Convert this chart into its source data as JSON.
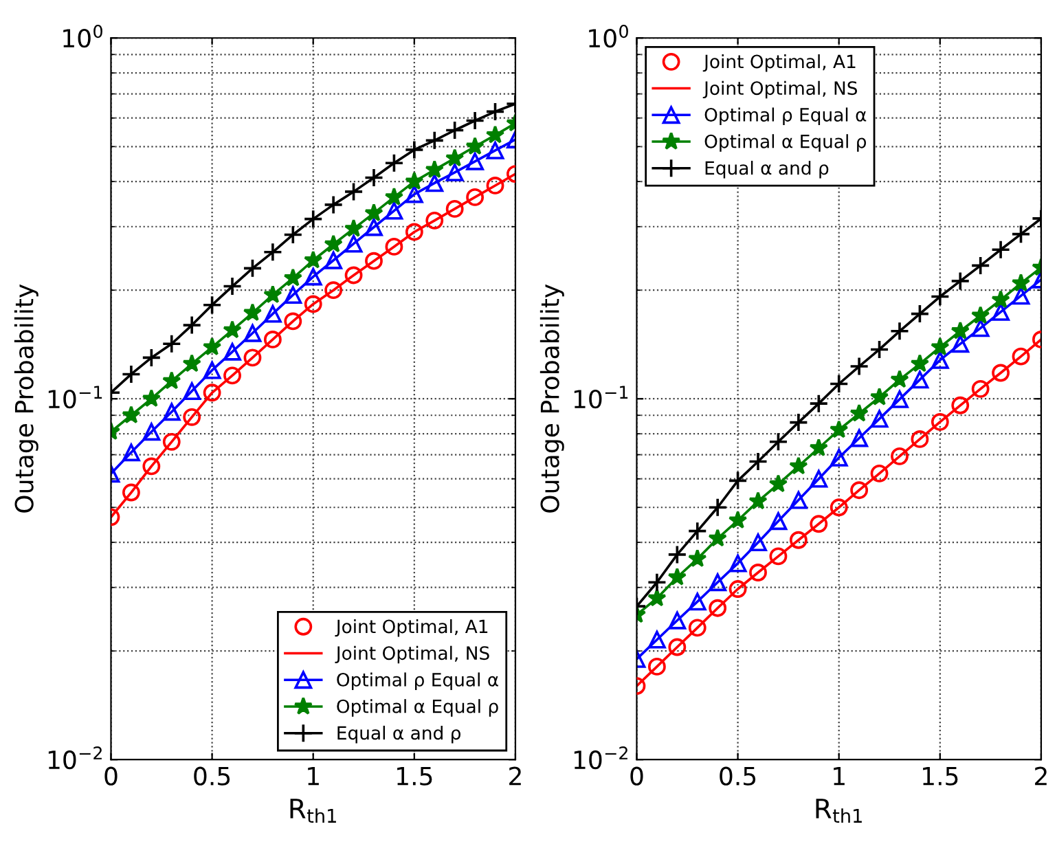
{
  "chart_data": [
    {
      "type": "line",
      "xlabel": "R$_{th1}$",
      "ylabel": "Outage Probability",
      "log": "y",
      "grid": true,
      "legend": "bottom right",
      "x": [
        0,
        0.1,
        0.2,
        0.3,
        0.4,
        0.5,
        0.6,
        0.7,
        0.8,
        0.9,
        1.0,
        1.1,
        1.2,
        1.3,
        1.4,
        1.5,
        1.6,
        1.7,
        1.8,
        1.9,
        2.0
      ],
      "xlim": [
        0,
        2
      ],
      "xticks": [
        0,
        0.5,
        1,
        1.5,
        2
      ],
      "ylim": [
        0.01,
        1
      ],
      "yticks": [
        {
          "value": 0.01,
          "label": "10$^{−2}$"
        },
        {
          "value": 0.1,
          "label": "10$^{−1}$"
        },
        {
          "value": 1,
          "label": "10$^{0}$"
        }
      ],
      "series": [
        {
          "name": "Joint Optimal, A1",
          "type": "scatter",
          "marker": "circle",
          "color": "#ff0000",
          "values": [
            0.047,
            0.055,
            0.065,
            0.076,
            0.089,
            0.104,
            0.116,
            0.13,
            0.146,
            0.164,
            0.183,
            0.2,
            0.22,
            0.241,
            0.264,
            0.29,
            0.312,
            0.336,
            0.362,
            0.39,
            0.42
          ]
        },
        {
          "name": "Joint Optimal, NS",
          "type": "line",
          "marker": "none",
          "color": "#ff0000",
          "values": [
            0.047,
            0.055,
            0.065,
            0.076,
            0.089,
            0.104,
            0.116,
            0.13,
            0.146,
            0.164,
            0.183,
            0.2,
            0.22,
            0.241,
            0.264,
            0.29,
            0.312,
            0.336,
            0.362,
            0.39,
            0.42
          ]
        },
        {
          "name": "Optimal ρ Equal α",
          "type": "line",
          "marker": "triangle",
          "color": "#0000ff",
          "values": [
            0.062,
            0.071,
            0.081,
            0.092,
            0.105,
            0.12,
            0.135,
            0.152,
            0.172,
            0.194,
            0.218,
            0.242,
            0.269,
            0.299,
            0.332,
            0.369,
            0.396,
            0.424,
            0.455,
            0.488,
            0.523
          ]
        },
        {
          "name": "Optimal α Equal ρ",
          "type": "line",
          "marker": "star",
          "color": "#008000",
          "values": [
            0.081,
            0.09,
            0.1,
            0.112,
            0.125,
            0.139,
            0.155,
            0.173,
            0.194,
            0.216,
            0.242,
            0.268,
            0.296,
            0.327,
            0.362,
            0.4,
            0.431,
            0.464,
            0.5,
            0.538,
            0.58
          ]
        },
        {
          "name": "Equal α and ρ",
          "type": "line",
          "marker": "cross",
          "color": "#000000",
          "values": [
            0.104,
            0.117,
            0.13,
            0.142,
            0.16,
            0.182,
            0.205,
            0.23,
            0.255,
            0.285,
            0.315,
            0.345,
            0.375,
            0.41,
            0.45,
            0.49,
            0.52,
            0.555,
            0.59,
            0.625,
            0.657
          ]
        }
      ]
    },
    {
      "type": "line",
      "xlabel": "R$_{th1}$",
      "ylabel": "Outage Probability",
      "log": "y",
      "grid": true,
      "legend": "top left",
      "x": [
        0,
        0.1,
        0.2,
        0.3,
        0.4,
        0.5,
        0.6,
        0.7,
        0.8,
        0.9,
        1.0,
        1.1,
        1.2,
        1.3,
        1.4,
        1.5,
        1.6,
        1.7,
        1.8,
        1.9,
        2.0
      ],
      "xlim": [
        0,
        2
      ],
      "xticks": [
        0,
        0.5,
        1,
        1.5,
        2
      ],
      "ylim": [
        0.01,
        1
      ],
      "yticks": [
        {
          "value": 0.01,
          "label": "10$^{−2}$"
        },
        {
          "value": 0.1,
          "label": "10$^{−1}$"
        },
        {
          "value": 1,
          "label": "10$^{0}$"
        }
      ],
      "series": [
        {
          "name": "Joint Optimal, A1",
          "type": "scatter",
          "marker": "circle",
          "color": "#ff0000",
          "values": [
            0.016,
            0.0181,
            0.0205,
            0.0232,
            0.0263,
            0.0297,
            0.033,
            0.0366,
            0.0406,
            0.045,
            0.05,
            0.0558,
            0.0621,
            0.0693,
            0.0773,
            0.0863,
            0.0959,
            0.1065,
            0.118,
            0.131,
            0.146
          ]
        },
        {
          "name": "Joint Optimal, NS",
          "type": "line",
          "marker": "none",
          "color": "#ff0000",
          "values": [
            0.016,
            0.0181,
            0.0205,
            0.0232,
            0.0263,
            0.0297,
            0.033,
            0.0366,
            0.0406,
            0.045,
            0.05,
            0.0558,
            0.0621,
            0.0693,
            0.0773,
            0.0863,
            0.0959,
            0.1065,
            0.118,
            0.131,
            0.146
          ]
        },
        {
          "name": "Optimal ρ Equal α",
          "type": "line",
          "marker": "triangle",
          "color": "#0000ff",
          "values": [
            0.019,
            0.0215,
            0.0243,
            0.0274,
            0.031,
            0.035,
            0.04,
            0.0458,
            0.0524,
            0.06,
            0.0687,
            0.0778,
            0.088,
            0.0997,
            0.113,
            0.128,
            0.142,
            0.157,
            0.174,
            0.193,
            0.214
          ]
        },
        {
          "name": "Optimal α Equal ρ",
          "type": "line",
          "marker": "star",
          "color": "#008000",
          "values": [
            0.0252,
            0.028,
            0.032,
            0.036,
            0.041,
            0.046,
            0.052,
            0.058,
            0.065,
            0.073,
            0.082,
            0.091,
            0.101,
            0.113,
            0.125,
            0.139,
            0.154,
            0.17,
            0.188,
            0.209,
            0.231
          ]
        },
        {
          "name": "Equal α and ρ",
          "type": "line",
          "marker": "cross",
          "color": "#000000",
          "values": [
            0.0266,
            0.031,
            0.037,
            0.043,
            0.05,
            0.0593,
            0.067,
            0.076,
            0.086,
            0.097,
            0.11,
            0.123,
            0.137,
            0.154,
            0.172,
            0.192,
            0.212,
            0.234,
            0.259,
            0.286,
            0.316
          ]
        }
      ]
    }
  ]
}
